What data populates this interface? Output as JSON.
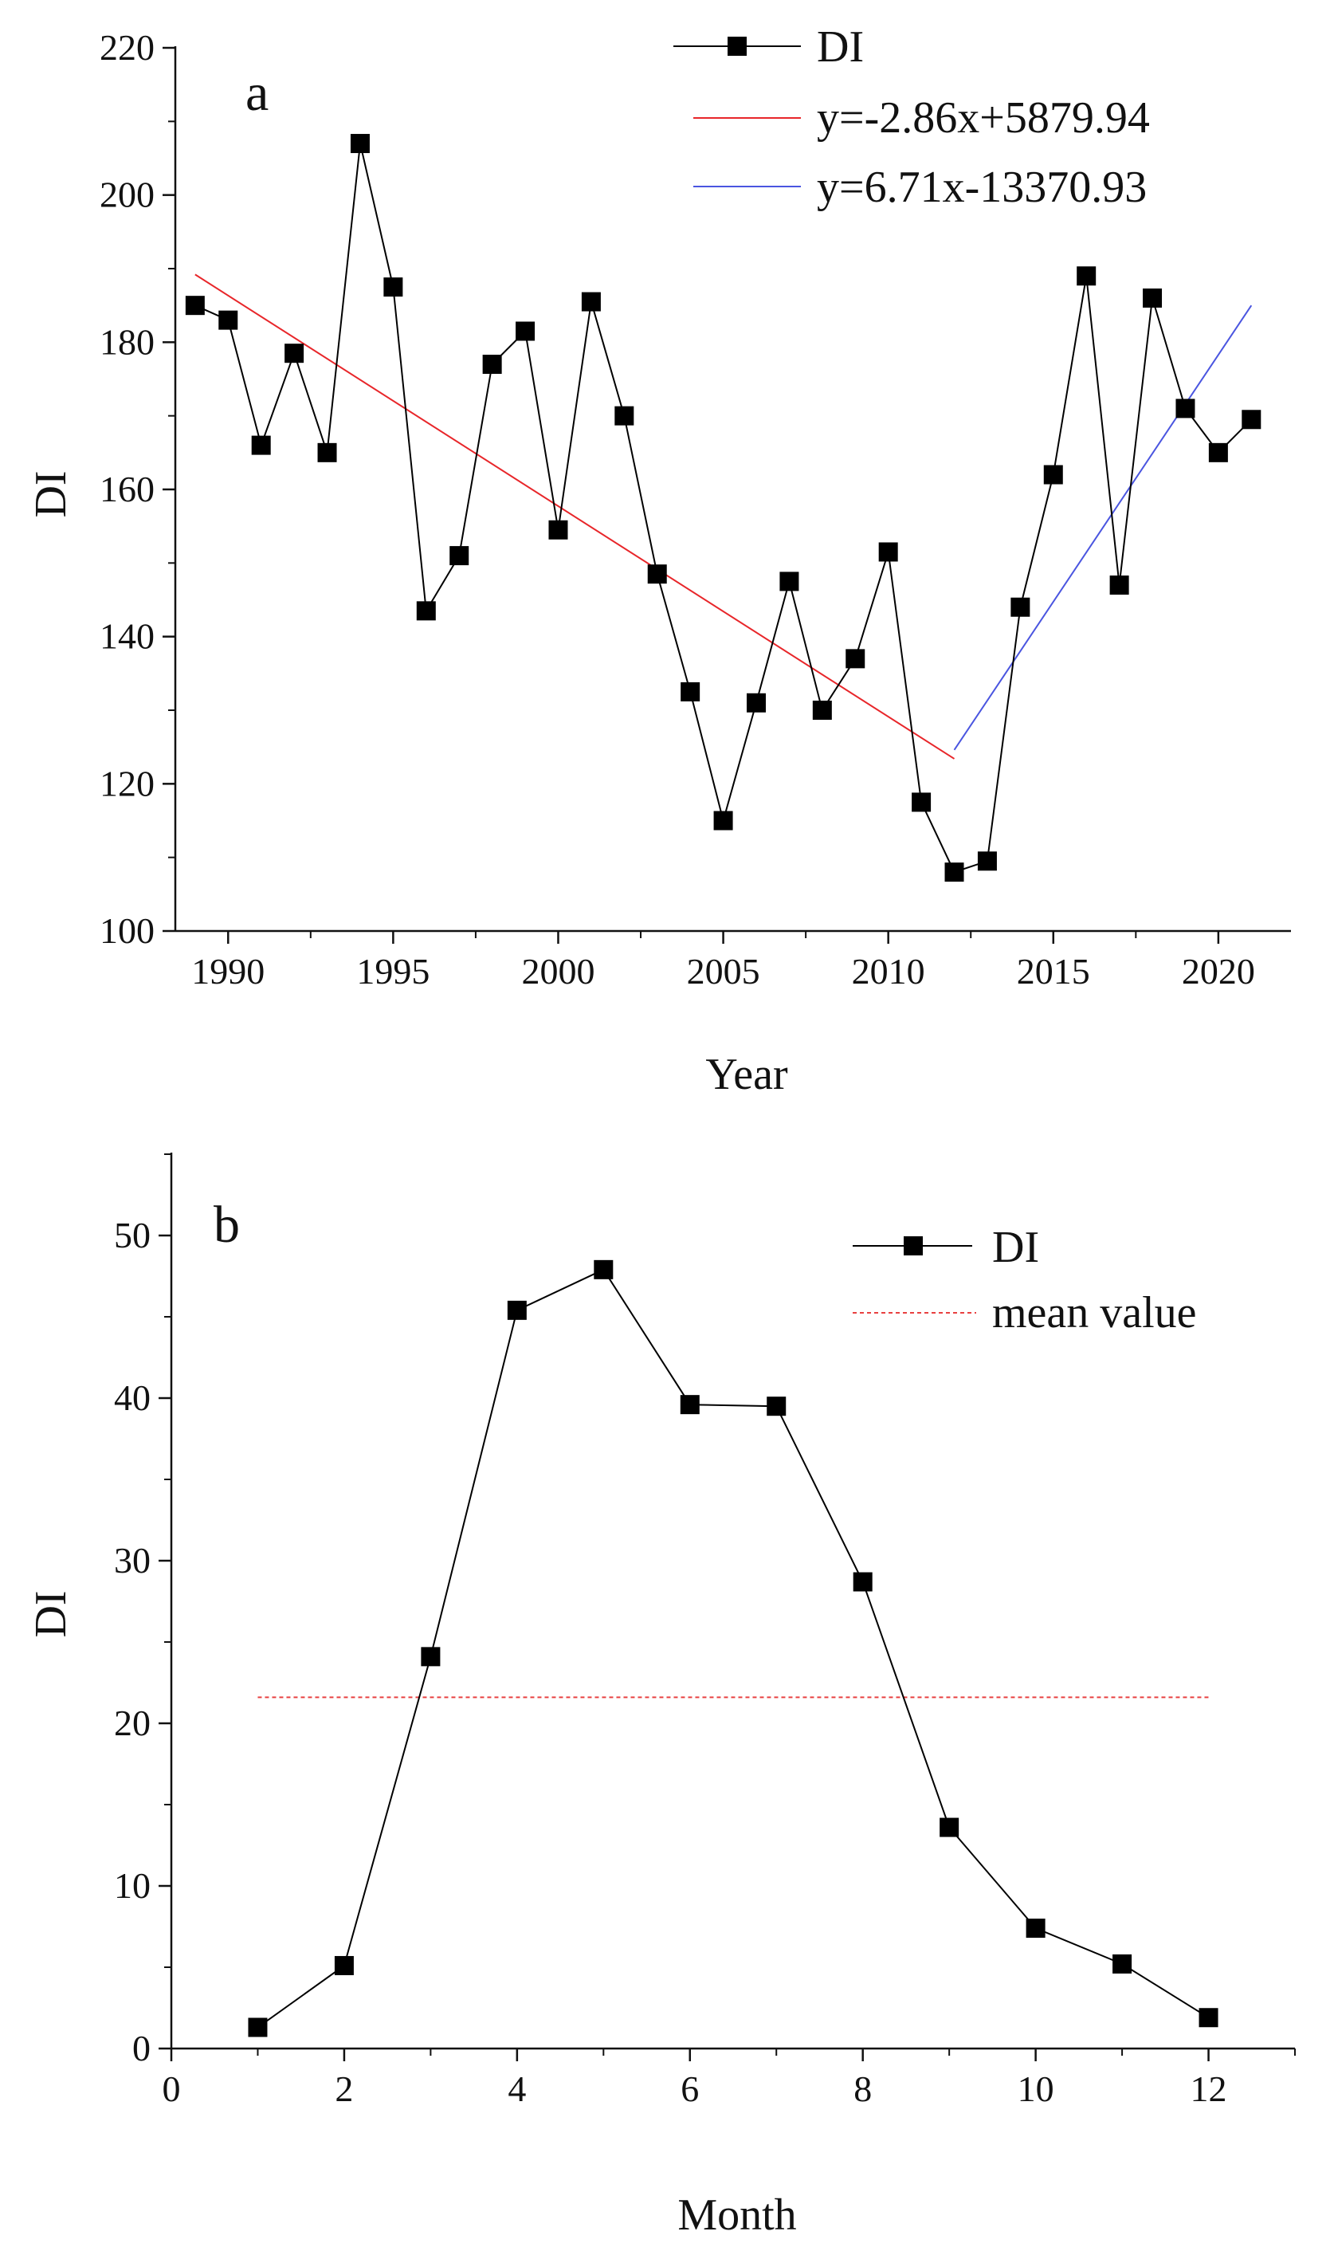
{
  "colors": {
    "series": "#000000",
    "fit1": "#e8262a",
    "fit2": "#4a55e0",
    "mean": "#e84040",
    "axis": "#111111"
  },
  "chart_data": [
    {
      "id": "a",
      "type": "line",
      "panel_label": "a",
      "xlabel": "Year",
      "ylabel": "DI",
      "xlim": [
        1988.4,
        2022.2
      ],
      "ylim": [
        100,
        220
      ],
      "xticks": [
        1990,
        1995,
        2000,
        2005,
        2010,
        2015,
        2020
      ],
      "yticks": [
        100,
        120,
        140,
        160,
        180,
        200,
        220
      ],
      "series": [
        {
          "name": "DI",
          "marker": "square",
          "x": [
            1989,
            1990,
            1991,
            1992,
            1993,
            1994,
            1995,
            1996,
            1997,
            1998,
            1999,
            2000,
            2001,
            2002,
            2003,
            2004,
            2005,
            2006,
            2007,
            2008,
            2009,
            2010,
            2011,
            2012,
            2013,
            2014,
            2015,
            2016,
            2017,
            2018,
            2019,
            2020,
            2021
          ],
          "y": [
            185,
            183,
            166,
            178.5,
            165,
            207,
            187.5,
            143.5,
            151,
            177,
            181.5,
            154.5,
            185.5,
            170,
            148.5,
            132.5,
            115,
            131,
            147.5,
            130,
            137,
            151.5,
            117.5,
            108,
            109.5,
            144,
            162,
            189,
            147,
            186,
            171,
            165,
            169.5
          ]
        }
      ],
      "fit_lines": [
        {
          "label": "y=-2.86x+5879.94",
          "x": [
            1989,
            2012
          ],
          "y": [
            189.2,
            123.4
          ]
        },
        {
          "label": "y=6.71x-13370.93",
          "x": [
            2012,
            2021
          ],
          "y": [
            124.6,
            185.0
          ]
        }
      ],
      "legend": {
        "position": "top-right",
        "entries": [
          "DI",
          "y=-2.86x+5879.94",
          "y=6.71x-13370.93"
        ]
      }
    },
    {
      "id": "b",
      "type": "line",
      "panel_label": "b",
      "xlabel": "Month",
      "ylabel": "DI",
      "xlim": [
        0,
        13
      ],
      "ylim": [
        0,
        55
      ],
      "xticks": [
        0,
        2,
        4,
        6,
        8,
        10,
        12
      ],
      "yticks": [
        0,
        10,
        20,
        30,
        40,
        50
      ],
      "series": [
        {
          "name": "DI",
          "marker": "square",
          "x": [
            1,
            2,
            3,
            4,
            5,
            6,
            7,
            8,
            9,
            10,
            11,
            12
          ],
          "y": [
            1.3,
            5.1,
            24.1,
            45.4,
            47.9,
            39.6,
            39.5,
            28.7,
            13.6,
            7.4,
            5.2,
            1.9
          ]
        }
      ],
      "mean_line": {
        "label": "mean value",
        "x": [
          1,
          12
        ],
        "y": 21.6
      },
      "legend": {
        "position": "top-right",
        "entries": [
          "DI",
          "mean value"
        ]
      }
    }
  ]
}
